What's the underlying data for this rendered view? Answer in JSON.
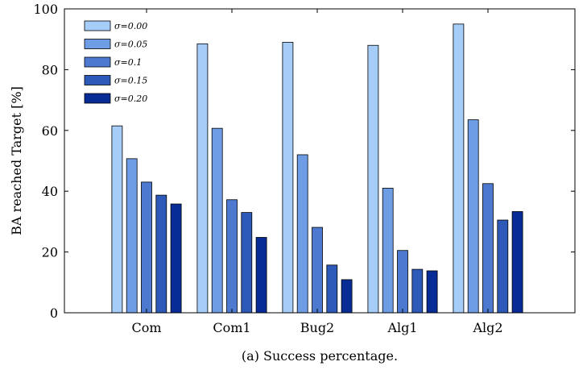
{
  "chart_data": {
    "type": "bar",
    "categories": [
      "Com",
      "Com1",
      "Bug2",
      "Alg1",
      "Alg2"
    ],
    "series": [
      {
        "name": "σ=0.00",
        "values": [
          61.5,
          88.5,
          89,
          88,
          95
        ]
      },
      {
        "name": "σ=0.05",
        "values": [
          50.7,
          60.7,
          52,
          41,
          63.5
        ]
      },
      {
        "name": "σ=0.1",
        "values": [
          43,
          37.2,
          28.1,
          20.5,
          42.5
        ]
      },
      {
        "name": "σ=0.15",
        "values": [
          38.7,
          33,
          15.7,
          14.3,
          30.5
        ]
      },
      {
        "name": "σ=0.20",
        "values": [
          35.8,
          24.8,
          10.9,
          13.8,
          33.3
        ]
      }
    ],
    "colors": [
      "#a6cdf8",
      "#6f9de5",
      "#4d7ad0",
      "#2d59b8",
      "#082c96"
    ],
    "ylabel": "BA reached Target [%]",
    "xlabel": "",
    "ylim": [
      0,
      100
    ],
    "yticks": [
      "0",
      "20",
      "40",
      "60",
      "80",
      "100"
    ],
    "legend_position": "top-left",
    "grid": false
  },
  "caption": "(a) Success percentage."
}
